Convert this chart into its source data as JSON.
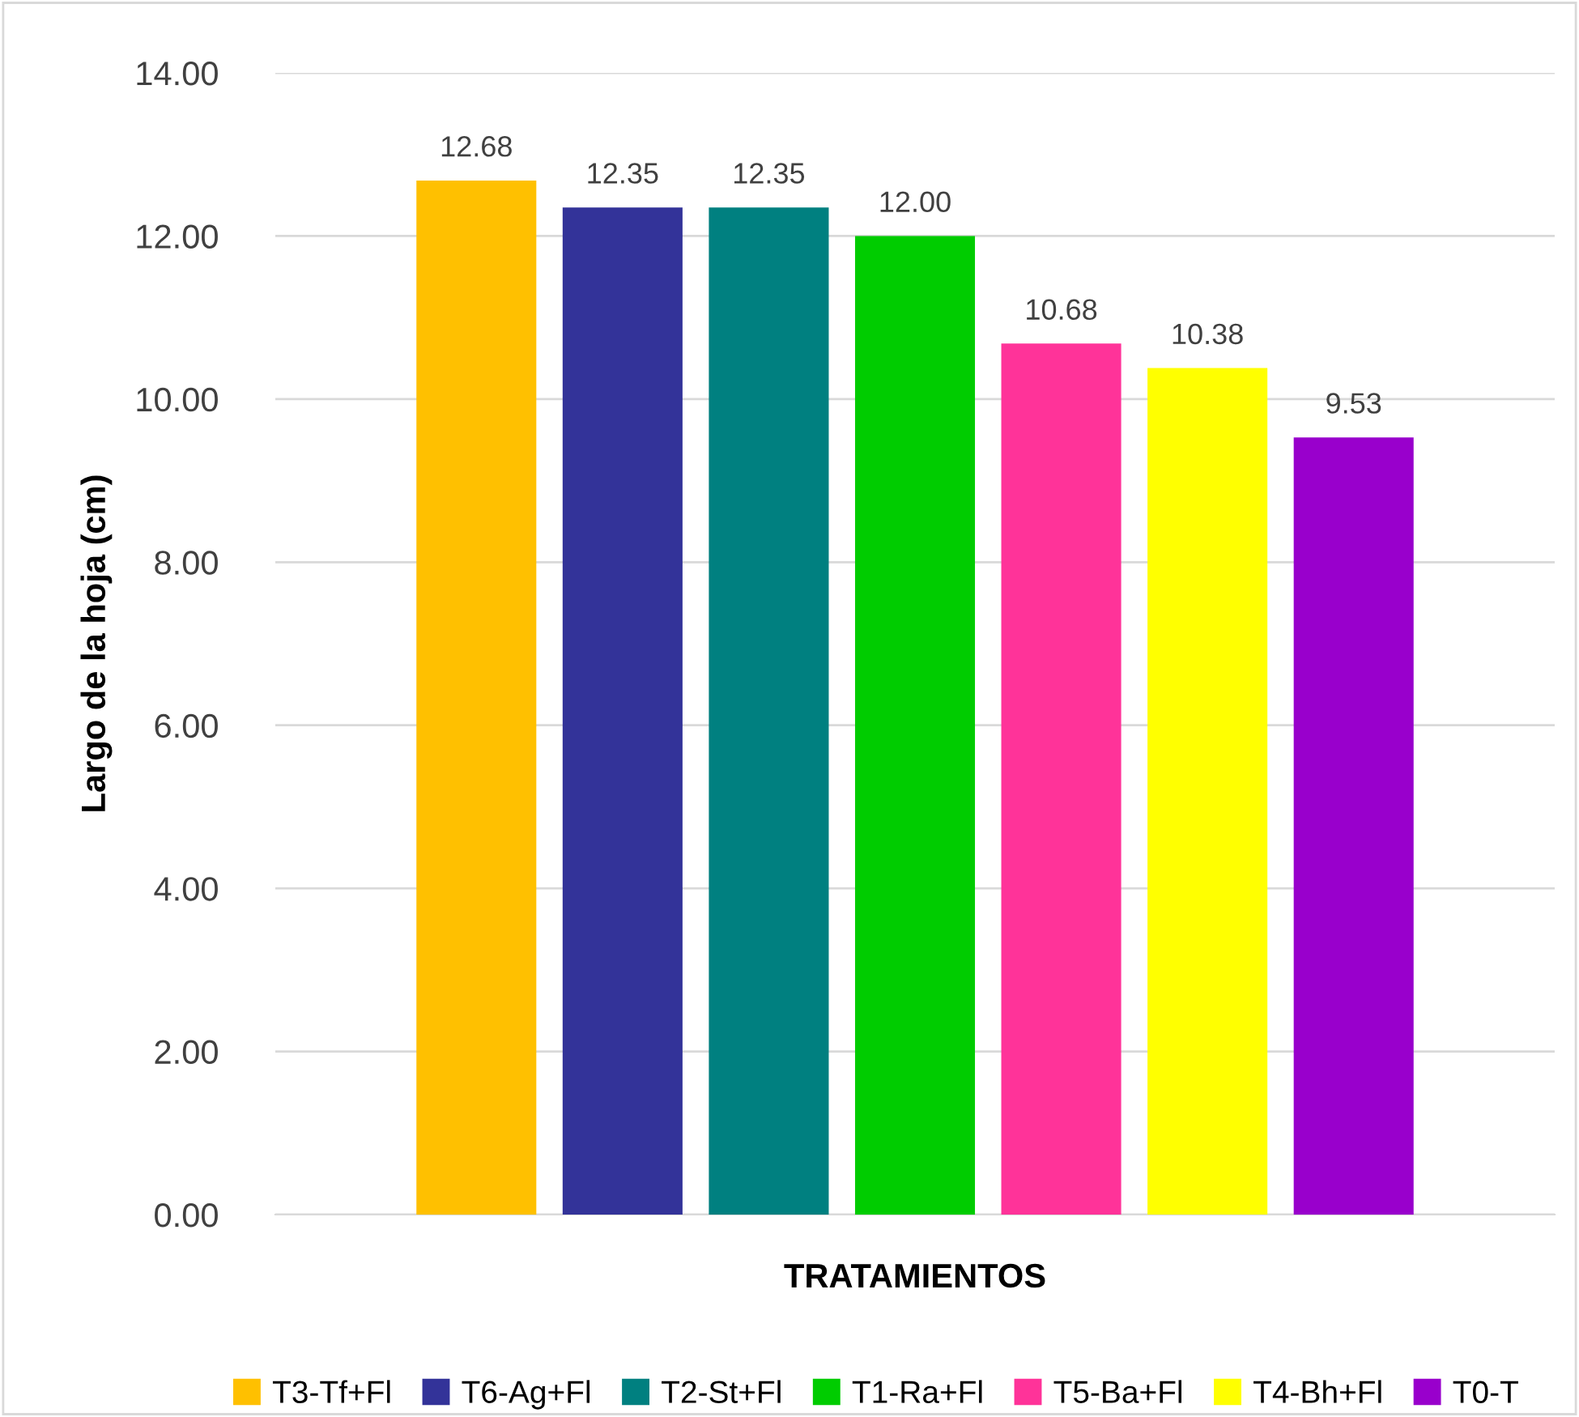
{
  "chart_data": {
    "type": "bar",
    "ylabel": "Largo de la hoja (cm)",
    "xlabel": "TRATAMIENTOS",
    "categories": [
      null
    ],
    "series": [
      {
        "name": "T3-Tf+Fl",
        "color": "#ffc000",
        "values": [
          12.68
        ],
        "value_labels": [
          "12.68"
        ]
      },
      {
        "name": "T6-Ag+Fl",
        "color": "#333399",
        "values": [
          12.35
        ],
        "value_labels": [
          "12.35"
        ]
      },
      {
        "name": "T2-St+Fl",
        "color": "#008080",
        "values": [
          12.35
        ],
        "value_labels": [
          "12.35"
        ]
      },
      {
        "name": "T1-Ra+Fl",
        "color": "#00cc00",
        "values": [
          12.0
        ],
        "value_labels": [
          "12.00"
        ]
      },
      {
        "name": "T5-Ba+Fl",
        "color": "#ff3399",
        "values": [
          10.68
        ],
        "value_labels": [
          "10.68"
        ]
      },
      {
        "name": "T4-Bh+Fl",
        "color": "#ffff00",
        "values": [
          10.38
        ],
        "value_labels": [
          "10.38"
        ]
      },
      {
        "name": "T0-T",
        "color": "#9900cc",
        "values": [
          9.53
        ],
        "value_labels": [
          "9.53"
        ]
      }
    ],
    "ylim": [
      0,
      14
    ],
    "yticks": [
      {
        "value": 0,
        "label": "0.00"
      },
      {
        "value": 2,
        "label": "2.00"
      },
      {
        "value": 4,
        "label": "4.00"
      },
      {
        "value": 6,
        "label": "6.00"
      },
      {
        "value": 8,
        "label": "8.00"
      },
      {
        "value": 10,
        "label": "10.00"
      },
      {
        "value": 12,
        "label": "12.00"
      },
      {
        "value": 14,
        "label": "14.00"
      }
    ],
    "grid": "y",
    "legend": "bottom"
  }
}
